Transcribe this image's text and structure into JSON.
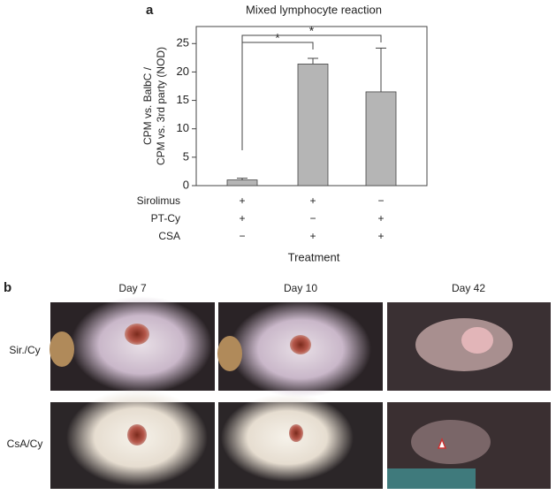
{
  "panel_a": {
    "label": "a",
    "chart_data": {
      "type": "bar",
      "title": "Mixed lymphocyte reaction",
      "y_label": [
        "CPM vs. BalbC /",
        "CPM vs. 3rd party (NOD)"
      ],
      "x_label": "Treatment",
      "categories": [
        null,
        null,
        null
      ],
      "series": [
        {
          "color": "#b5b5b5",
          "values": [
            1.0,
            21.4,
            16.5
          ],
          "errors": [
            0.3,
            1.0,
            7.7
          ]
        }
      ],
      "ylim": [
        0,
        28
      ],
      "yticks": [
        0,
        5,
        10,
        15,
        20,
        25
      ],
      "significance": [
        {
          "pair": [
            0,
            1
          ],
          "label": "*"
        },
        {
          "pair": [
            0,
            2
          ],
          "label": "*"
        }
      ],
      "treatment_table": [
        {
          "label": "Sirolimus",
          "values": [
            "+",
            "+",
            "−"
          ]
        },
        {
          "label": "PT-Cy",
          "values": [
            "+",
            "−",
            "+"
          ]
        },
        {
          "label": "CSA",
          "values": [
            "−",
            "+",
            "+"
          ]
        }
      ]
    }
  },
  "panel_b": {
    "label": "b",
    "columns": [
      "Day 7",
      "Day 10",
      "Day 42"
    ],
    "rows": [
      "Sir./Cy",
      "CsA/Cy"
    ]
  }
}
